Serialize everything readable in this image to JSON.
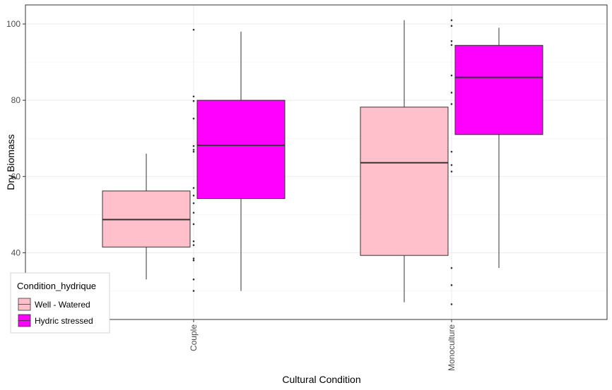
{
  "chart_data": {
    "type": "boxplot",
    "xlabel": "Cultural Condition",
    "ylabel": "Dry Biomass",
    "categories": [
      "Couple",
      "Monoculture"
    ],
    "ylim": [
      22.5,
      105
    ],
    "yticks": [
      40,
      60,
      80,
      100
    ],
    "grid": true,
    "legend": {
      "title": "Condition_hydrique",
      "position": "bottom-left",
      "items": [
        "Well - Watered",
        "Hydric stressed"
      ]
    },
    "series": [
      {
        "name": "Well - Watered",
        "color": "#FFC0CB",
        "boxes": [
          {
            "category": "Couple",
            "min": 33,
            "q1": 41.5,
            "median": 48.7,
            "q3": 56.2,
            "max": 66
          },
          {
            "category": "Monoculture",
            "min": 27,
            "q1": 39.3,
            "median": 63.6,
            "q3": 78.2,
            "max": 101
          }
        ]
      },
      {
        "name": "Hydric stressed",
        "color": "#FF00FF",
        "boxes": [
          {
            "category": "Couple",
            "min": 30,
            "q1": 54.2,
            "median": 68.2,
            "q3": 80,
            "max": 98
          },
          {
            "category": "Monoculture",
            "min": 36,
            "q1": 71,
            "median": 86,
            "q3": 94.4,
            "max": 99
          }
        ]
      }
    ],
    "points": [
      {
        "category": "Couple",
        "values": [
          98.5,
          81,
          79.8,
          75.2,
          68,
          67,
          66.5,
          57,
          55,
          53,
          50.5,
          47.5,
          43,
          42,
          38.5,
          38,
          33,
          30
        ]
      },
      {
        "category": "Monoculture",
        "values": [
          101,
          99.5,
          95.5,
          94.5,
          86.5,
          82,
          79,
          66.5,
          63,
          61.3,
          36,
          31.5,
          26.5
        ]
      }
    ]
  }
}
